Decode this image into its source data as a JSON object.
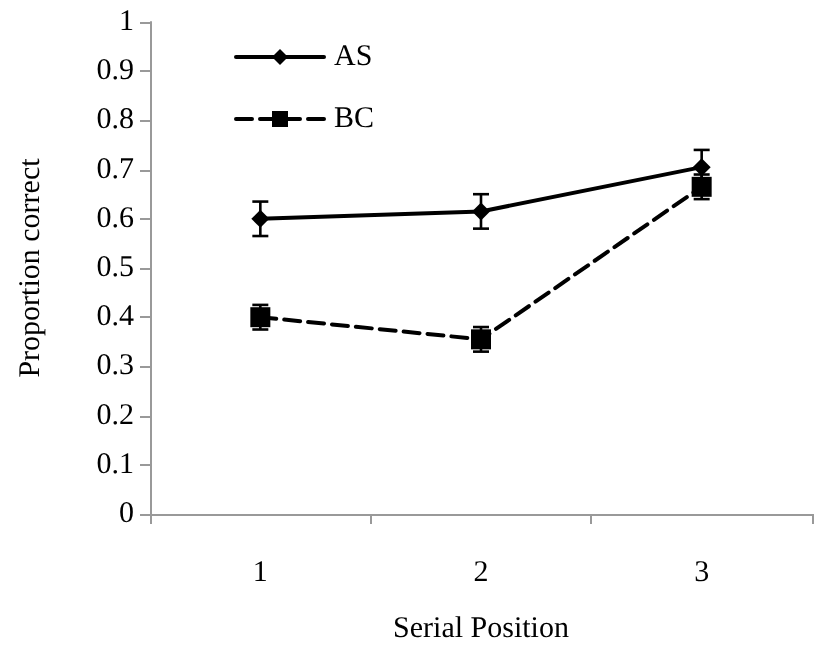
{
  "chart_data": {
    "type": "line",
    "xlabel": "Serial Position",
    "ylabel": "Proportion correct",
    "categories": [
      "1",
      "2",
      "3"
    ],
    "series": [
      {
        "name": "AS",
        "color": "#000000",
        "marker": "diamond",
        "line_style": "solid",
        "values": [
          0.6,
          0.615,
          0.705
        ],
        "errors": [
          0.035,
          0.035,
          0.035
        ]
      },
      {
        "name": "BC",
        "color": "#000000",
        "marker": "square",
        "line_style": "dashed",
        "values": [
          0.4,
          0.355,
          0.665
        ],
        "errors": [
          0.025,
          0.025,
          0.025
        ]
      }
    ],
    "ylim": [
      0,
      1
    ],
    "yticks": [
      0,
      0.1,
      0.2,
      0.3,
      0.4,
      0.5,
      0.6,
      0.7,
      0.8,
      0.9,
      1
    ],
    "grid": false,
    "legend": "top left"
  }
}
